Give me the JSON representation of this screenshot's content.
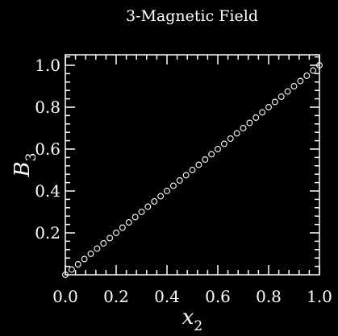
{
  "chart_data": {
    "type": "scatter",
    "title": "3-Magnetic Field",
    "xlabel": "x",
    "xlabel_sub": "2",
    "ylabel": "B",
    "ylabel_sub": "3",
    "xlim": [
      0.0,
      1.0
    ],
    "ylim": [
      0.0,
      1.05
    ],
    "xticks": [
      "0.0",
      "0.2",
      "0.4",
      "0.6",
      "0.8",
      "1.0"
    ],
    "yticks": [
      "0.2",
      "0.4",
      "0.6",
      "0.8",
      "1.0"
    ],
    "series": [
      {
        "marker": "open-circle",
        "color": "#ffffff",
        "points": [
          [
            0.0,
            0.0
          ],
          [
            0.025,
            0.025
          ],
          [
            0.05,
            0.05
          ],
          [
            0.075,
            0.075
          ],
          [
            0.1,
            0.1
          ],
          [
            0.125,
            0.125
          ],
          [
            0.15,
            0.15
          ],
          [
            0.175,
            0.175
          ],
          [
            0.2,
            0.2
          ],
          [
            0.225,
            0.225
          ],
          [
            0.25,
            0.25
          ],
          [
            0.275,
            0.275
          ],
          [
            0.3,
            0.3
          ],
          [
            0.325,
            0.325
          ],
          [
            0.35,
            0.35
          ],
          [
            0.375,
            0.375
          ],
          [
            0.4,
            0.4
          ],
          [
            0.425,
            0.425
          ],
          [
            0.45,
            0.45
          ],
          [
            0.475,
            0.475
          ],
          [
            0.5,
            0.5
          ],
          [
            0.525,
            0.525
          ],
          [
            0.55,
            0.55
          ],
          [
            0.575,
            0.575
          ],
          [
            0.6,
            0.6
          ],
          [
            0.625,
            0.625
          ],
          [
            0.65,
            0.65
          ],
          [
            0.675,
            0.675
          ],
          [
            0.7,
            0.7
          ],
          [
            0.725,
            0.725
          ],
          [
            0.75,
            0.75
          ],
          [
            0.775,
            0.775
          ],
          [
            0.8,
            0.8
          ],
          [
            0.825,
            0.825
          ],
          [
            0.85,
            0.85
          ],
          [
            0.875,
            0.875
          ],
          [
            0.9,
            0.9
          ],
          [
            0.925,
            0.925
          ],
          [
            0.95,
            0.95
          ],
          [
            0.975,
            0.975
          ],
          [
            1.0,
            1.0
          ]
        ]
      }
    ],
    "grid": false,
    "background": "#000000",
    "foreground": "#ffffff"
  }
}
